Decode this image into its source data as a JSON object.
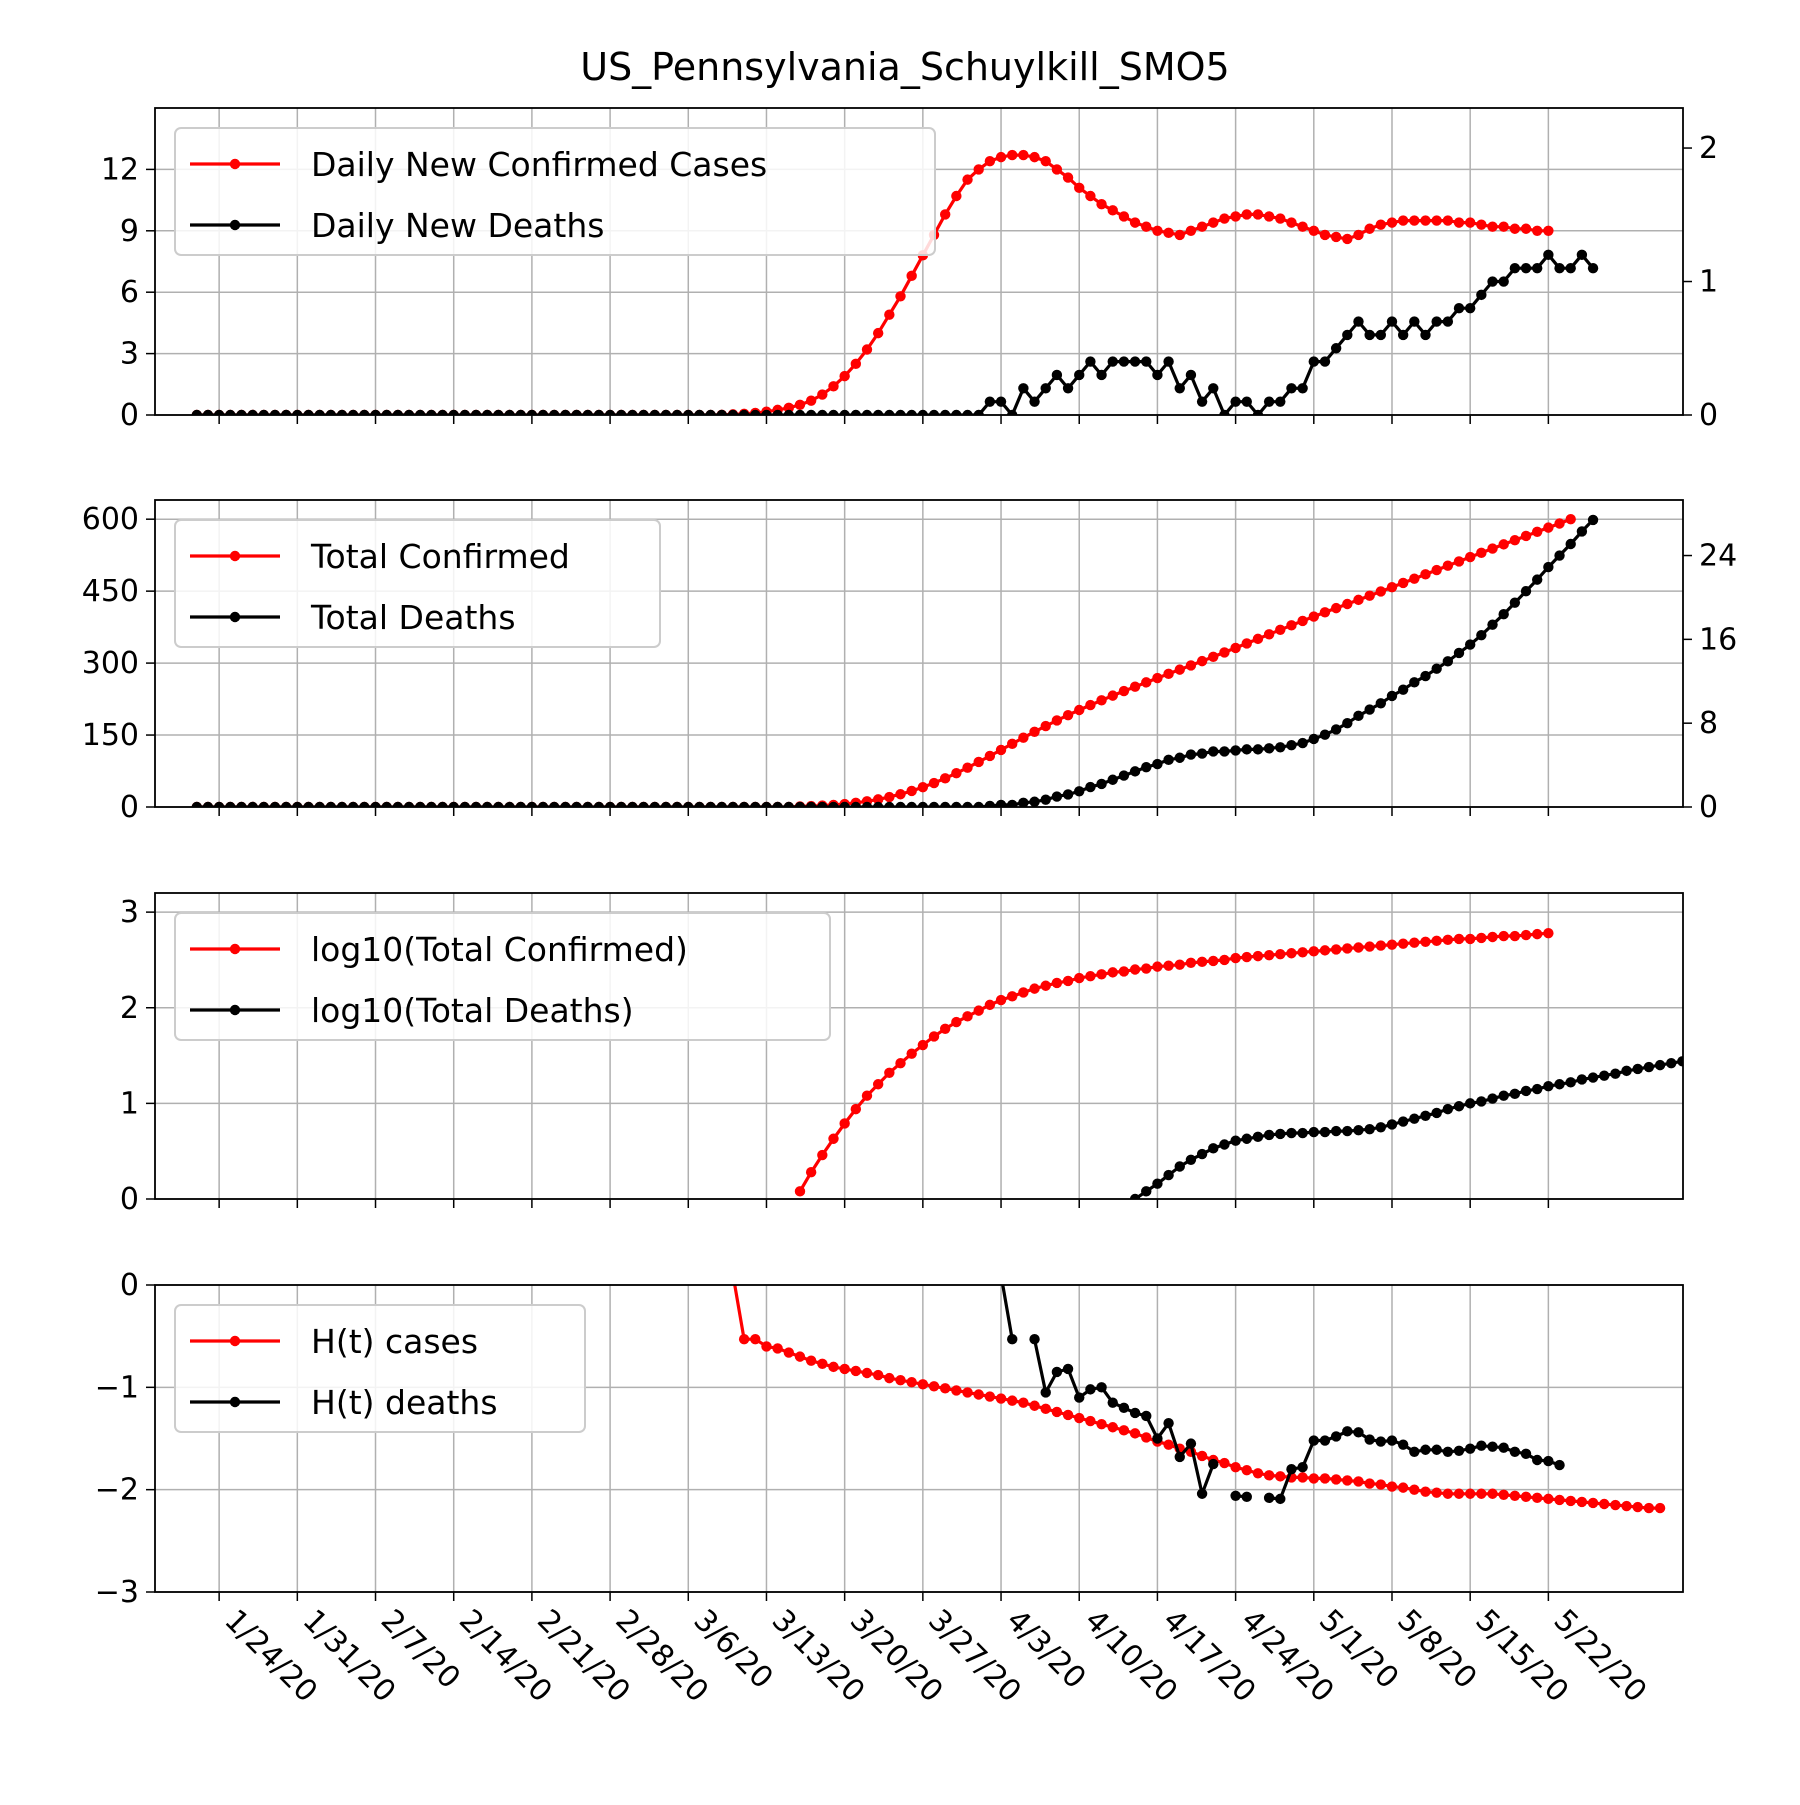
{
  "title": "US_Pennsylvania_Schuylkill_SMO5",
  "x_ticks": [
    "1/24/20",
    "1/31/20",
    "2/7/20",
    "2/14/20",
    "2/21/20",
    "2/28/20",
    "3/6/20",
    "3/13/20",
    "3/20/20",
    "3/27/20",
    "4/3/20",
    "4/10/20",
    "4/17/20",
    "4/24/20",
    "5/1/20",
    "5/8/20",
    "5/15/20",
    "5/22/20"
  ],
  "colors": {
    "cases": "#ff0000",
    "deaths": "#000000",
    "grid": "#b0b0b0"
  },
  "chart_data": [
    {
      "type": "line",
      "x_start": "1/22/20",
      "x_end": "5/26/20",
      "legend": [
        "Daily New Confirmed Cases",
        "Daily New Deaths"
      ],
      "legend_position": "top-left",
      "grid": true,
      "y_left": {
        "lim": [
          0,
          15
        ],
        "ticks": [
          0,
          3,
          6,
          9,
          12
        ]
      },
      "y_right": {
        "lim": [
          0,
          2.3
        ],
        "ticks": [
          0,
          1,
          2
        ]
      },
      "series": [
        {
          "name": "Daily New Confirmed Cases",
          "axis": "left",
          "color": "#ff0000",
          "values": [
            0,
            0,
            0,
            0,
            0,
            0,
            0,
            0,
            0,
            0,
            0,
            0,
            0,
            0,
            0,
            0,
            0,
            0,
            0,
            0,
            0,
            0,
            0,
            0,
            0,
            0,
            0,
            0,
            0,
            0,
            0,
            0,
            0,
            0,
            0,
            0,
            0,
            0,
            0,
            0,
            0,
            0,
            0,
            0,
            0,
            0,
            0,
            0.01,
            0.03,
            0.06,
            0.1,
            0.16,
            0.25,
            0.35,
            0.5,
            0.7,
            1.0,
            1.4,
            1.9,
            2.5,
            3.2,
            4.0,
            4.9,
            5.8,
            6.8,
            7.8,
            8.8,
            9.8,
            10.7,
            11.5,
            12.0,
            12.4,
            12.6,
            12.7,
            12.7,
            12.6,
            12.4,
            12.0,
            11.6,
            11.1,
            10.7,
            10.3,
            10.0,
            9.7,
            9.4,
            9.2,
            9.0,
            8.9,
            8.8,
            9.0,
            9.2,
            9.4,
            9.6,
            9.7,
            9.8,
            9.8,
            9.7,
            9.6,
            9.4,
            9.2,
            9.0,
            8.8,
            8.7,
            8.6,
            8.8,
            9.1,
            9.3,
            9.4,
            9.5,
            9.5,
            9.5,
            9.5,
            9.5,
            9.4,
            9.4,
            9.3,
            9.2,
            9.2,
            9.1,
            9.1,
            9.0,
            9.0
          ]
        },
        {
          "name": "Daily New Deaths",
          "axis": "right",
          "color": "#000000",
          "values": [
            0,
            0,
            0,
            0,
            0,
            0,
            0,
            0,
            0,
            0,
            0,
            0,
            0,
            0,
            0,
            0,
            0,
            0,
            0,
            0,
            0,
            0,
            0,
            0,
            0,
            0,
            0,
            0,
            0,
            0,
            0,
            0,
            0,
            0,
            0,
            0,
            0,
            0,
            0,
            0,
            0,
            0,
            0,
            0,
            0,
            0,
            0,
            0,
            0,
            0,
            0,
            0,
            0,
            0,
            0,
            0,
            0,
            0,
            0,
            0,
            0,
            0,
            0,
            0,
            0,
            0,
            0,
            0,
            0,
            0,
            0,
            0.1,
            0.1,
            0,
            0.2,
            0.1,
            0.2,
            0.3,
            0.2,
            0.3,
            0.4,
            0.3,
            0.4,
            0.4,
            0.4,
            0.4,
            0.3,
            0.4,
            0.2,
            0.3,
            0.1,
            0.2,
            0,
            0.1,
            0.1,
            0,
            0.1,
            0.1,
            0.2,
            0.2,
            0.4,
            0.4,
            0.5,
            0.6,
            0.7,
            0.6,
            0.6,
            0.7,
            0.6,
            0.7,
            0.6,
            0.7,
            0.7,
            0.8,
            0.8,
            0.9,
            1.0,
            1.0,
            1.1,
            1.1,
            1.1,
            1.2,
            1.1,
            1.1,
            1.2,
            1.1
          ]
        }
      ]
    },
    {
      "type": "line",
      "x_start": "1/22/20",
      "x_end": "5/26/20",
      "legend": [
        "Total Confirmed",
        "Total Deaths"
      ],
      "legend_position": "top-left",
      "grid": true,
      "y_left": {
        "lim": [
          0,
          640
        ],
        "ticks": [
          0,
          150,
          300,
          450,
          600
        ]
      },
      "y_right": {
        "lim": [
          0,
          29.3
        ],
        "ticks": [
          0,
          8,
          16,
          24
        ]
      },
      "series": [
        {
          "name": "Total Confirmed",
          "axis": "left",
          "color": "#ff0000",
          "values": [
            0,
            0,
            0,
            0,
            0,
            0,
            0,
            0,
            0,
            0,
            0,
            0,
            0,
            0,
            0,
            0,
            0,
            0,
            0,
            0,
            0,
            0,
            0,
            0,
            0,
            0,
            0,
            0,
            0,
            0,
            0,
            0,
            0,
            0,
            0,
            0,
            0,
            0,
            0,
            0,
            0,
            0,
            0,
            0,
            0,
            0,
            0,
            0,
            0,
            0,
            0,
            0,
            0,
            0,
            1.2,
            1.9,
            2.9,
            4.3,
            6.2,
            8.7,
            11.9,
            15.9,
            20.8,
            26.6,
            33.4,
            41.2,
            50.0,
            59.8,
            70.5,
            82.0,
            94.0,
            106.4,
            119.0,
            131.7,
            144.4,
            156.8,
            168.8,
            180.4,
            191.5,
            202.2,
            212.5,
            222.5,
            232.2,
            241.6,
            250.8,
            259.8,
            268.7,
            277.6,
            286.4,
            295.2,
            304.1,
            313.1,
            322.3,
            331.6,
            341.0,
            350.5,
            360.0,
            369.4,
            378.7,
            387.9,
            397.0,
            405.9,
            414.6,
            423.2,
            431.8,
            440.5,
            449.3,
            458.2,
            467.1,
            476.0,
            485.0,
            494.0,
            503.0,
            512.0,
            521.0,
            529.9,
            538.7,
            547.5,
            556.3,
            565.0,
            573.7,
            582.4,
            591.0,
            600.0
          ]
        },
        {
          "name": "Total Deaths",
          "axis": "right",
          "color": "#000000",
          "values": [
            0,
            0,
            0,
            0,
            0,
            0,
            0,
            0,
            0,
            0,
            0,
            0,
            0,
            0,
            0,
            0,
            0,
            0,
            0,
            0,
            0,
            0,
            0,
            0,
            0,
            0,
            0,
            0,
            0,
            0,
            0,
            0,
            0,
            0,
            0,
            0,
            0,
            0,
            0,
            0,
            0,
            0,
            0,
            0,
            0,
            0,
            0,
            0,
            0,
            0,
            0,
            0,
            0,
            0,
            0,
            0,
            0,
            0,
            0,
            0,
            0,
            0,
            0,
            0,
            0,
            0,
            0,
            0,
            0,
            0,
            0,
            0.1,
            0.2,
            0.2,
            0.4,
            0.5,
            0.7,
            1.0,
            1.2,
            1.5,
            1.9,
            2.2,
            2.6,
            3.0,
            3.4,
            3.8,
            4.1,
            4.5,
            4.7,
            5.0,
            5.1,
            5.3,
            5.3,
            5.4,
            5.5,
            5.5,
            5.6,
            5.7,
            5.9,
            6.1,
            6.5,
            6.9,
            7.4,
            8.0,
            8.7,
            9.3,
            9.9,
            10.6,
            11.2,
            11.9,
            12.5,
            13.2,
            13.9,
            14.7,
            15.5,
            16.4,
            17.4,
            18.4,
            19.5,
            20.6,
            21.7,
            22.9,
            24.0,
            25.1,
            26.3,
            27.4
          ]
        }
      ]
    },
    {
      "type": "line",
      "x_start": "1/22/20",
      "x_end": "5/26/20",
      "legend": [
        "log10(Total Confirmed)",
        "log10(Total Deaths)"
      ],
      "legend_position": "top-left",
      "grid": true,
      "y_left": {
        "lim": [
          0,
          3.2
        ],
        "ticks": [
          0,
          1,
          2,
          3
        ]
      },
      "series": [
        {
          "name": "log10(Total Confirmed)",
          "axis": "left",
          "color": "#ff0000",
          "start_index": 54,
          "values": [
            0.08,
            0.28,
            0.46,
            0.63,
            0.79,
            0.94,
            1.08,
            1.2,
            1.32,
            1.42,
            1.52,
            1.61,
            1.7,
            1.78,
            1.85,
            1.91,
            1.97,
            2.03,
            2.08,
            2.12,
            2.16,
            2.2,
            2.23,
            2.26,
            2.28,
            2.31,
            2.33,
            2.35,
            2.37,
            2.38,
            2.4,
            2.41,
            2.43,
            2.44,
            2.45,
            2.47,
            2.48,
            2.49,
            2.5,
            2.52,
            2.53,
            2.54,
            2.55,
            2.56,
            2.57,
            2.58,
            2.59,
            2.6,
            2.61,
            2.62,
            2.63,
            2.64,
            2.65,
            2.66,
            2.67,
            2.68,
            2.69,
            2.7,
            2.71,
            2.72,
            2.72,
            2.73,
            2.74,
            2.75,
            2.75,
            2.76,
            2.77,
            2.78
          ]
        },
        {
          "name": "log10(Total Deaths)",
          "axis": "left",
          "color": "#000000",
          "start_index": 84,
          "values": [
            0.0,
            0.08,
            0.16,
            0.25,
            0.34,
            0.41,
            0.47,
            0.53,
            0.57,
            0.61,
            0.63,
            0.65,
            0.67,
            0.68,
            0.69,
            0.69,
            0.7,
            0.7,
            0.71,
            0.71,
            0.72,
            0.73,
            0.75,
            0.78,
            0.81,
            0.84,
            0.87,
            0.9,
            0.94,
            0.97,
            1.0,
            1.02,
            1.05,
            1.08,
            1.1,
            1.13,
            1.15,
            1.18,
            1.2,
            1.22,
            1.25,
            1.27,
            1.29,
            1.31,
            1.34,
            1.36,
            1.38,
            1.4,
            1.42,
            1.44
          ]
        }
      ]
    },
    {
      "type": "line",
      "x_start": "1/22/20",
      "x_end": "5/26/20",
      "legend": [
        "H(t) cases",
        "H(t) deaths"
      ],
      "legend_position": "top-left",
      "grid": true,
      "y_left": {
        "lim": [
          -3,
          0
        ],
        "ticks": [
          0,
          -1,
          -2,
          -3
        ]
      },
      "series": [
        {
          "name": "H(t) cases",
          "axis": "left",
          "color": "#ff0000",
          "start_index": 48,
          "values": [
            0.1,
            -0.53,
            -0.53,
            -0.6,
            -0.62,
            -0.66,
            -0.7,
            -0.74,
            -0.77,
            -0.8,
            -0.82,
            -0.84,
            -0.86,
            -0.88,
            -0.91,
            -0.93,
            -0.95,
            -0.97,
            -0.99,
            -1.01,
            -1.03,
            -1.05,
            -1.07,
            -1.09,
            -1.11,
            -1.13,
            -1.15,
            -1.18,
            -1.21,
            -1.24,
            -1.27,
            -1.3,
            -1.33,
            -1.36,
            -1.39,
            -1.42,
            -1.45,
            -1.49,
            -1.53,
            -1.56,
            -1.6,
            -1.63,
            -1.67,
            -1.71,
            -1.74,
            -1.78,
            -1.81,
            -1.84,
            -1.86,
            -1.87,
            -1.88,
            -1.88,
            -1.89,
            -1.89,
            -1.9,
            -1.91,
            -1.92,
            -1.94,
            -1.95,
            -1.97,
            -1.98,
            -2.0,
            -2.02,
            -2.03,
            -2.04,
            -2.04,
            -2.04,
            -2.04,
            -2.04,
            -2.05,
            -2.06,
            -2.07,
            -2.08,
            -2.09,
            -2.1,
            -2.11,
            -2.12,
            -2.13,
            -2.14,
            -2.15,
            -2.16,
            -2.17,
            -2.18,
            -2.18
          ]
        },
        {
          "name": "H(t) deaths",
          "axis": "left",
          "color": "#000000",
          "start_index": 72,
          "values": [
            0.1,
            -0.53,
            null,
            -0.53,
            -1.05,
            -0.85,
            -0.82,
            -1.1,
            -1.02,
            -1.0,
            -1.15,
            -1.2,
            -1.25,
            -1.28,
            -1.5,
            -1.35,
            -1.68,
            -1.55,
            -2.04,
            -1.75,
            null,
            -2.06,
            -2.07,
            null,
            -2.08,
            -2.09,
            -1.8,
            -1.78,
            -1.52,
            -1.52,
            -1.48,
            -1.43,
            -1.44,
            -1.51,
            -1.53,
            -1.52,
            -1.56,
            -1.63,
            -1.61,
            -1.61,
            -1.63,
            -1.62,
            -1.6,
            -1.57,
            -1.58,
            -1.59,
            -1.63,
            -1.65,
            -1.71,
            -1.72,
            -1.76
          ]
        }
      ]
    }
  ]
}
